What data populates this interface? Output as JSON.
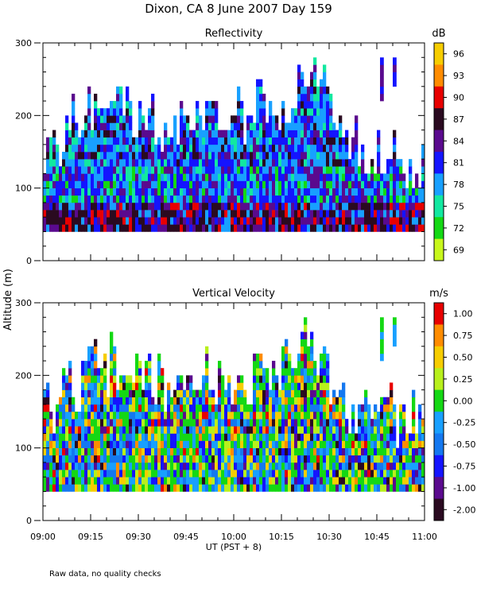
{
  "title": "Dixon, CA  8 June 2007  Day 159",
  "shared_ylabel": "Altitude (m)",
  "shared_xlabel": "UT  (PST + 8)",
  "footnote": "Raw data, no quality checks",
  "chart_data": [
    {
      "type": "heatmap",
      "title": "Reflectivity",
      "colorbar_unit": "dB",
      "x_range": [
        "09:00",
        "11:00"
      ],
      "x_ticks": [
        "09:00",
        "09:15",
        "09:30",
        "09:45",
        "10:00",
        "10:15",
        "10:30",
        "10:45",
        "11:00"
      ],
      "ylim": [
        0,
        300
      ],
      "y_ticks": [
        0,
        100,
        200,
        300
      ],
      "colorbar_ticks": [
        "96",
        "93",
        "90",
        "87",
        "84",
        "81",
        "78",
        "75",
        "72",
        "69"
      ],
      "colorbar_colors": [
        "#f6cd00",
        "#ff8c00",
        "#e80000",
        "#2a0a20",
        "#5a0a8e",
        "#1414ff",
        "#18a0ff",
        "#12e8a0",
        "#14d814",
        "#c8f71c"
      ],
      "data_floor_m": 40,
      "echo_top_profile": [
        {
          "minutes": 0,
          "top_m": 140
        },
        {
          "minutes": 8,
          "top_m": 180
        },
        {
          "minutes": 15,
          "top_m": 200
        },
        {
          "minutes": 25,
          "top_m": 220
        },
        {
          "minutes": 35,
          "top_m": 180
        },
        {
          "minutes": 45,
          "top_m": 200
        },
        {
          "minutes": 55,
          "top_m": 200
        },
        {
          "minutes": 65,
          "top_m": 200
        },
        {
          "minutes": 75,
          "top_m": 220
        },
        {
          "minutes": 85,
          "top_m": 240
        },
        {
          "minutes": 95,
          "top_m": 180
        },
        {
          "minutes": 100,
          "top_m": 140
        },
        {
          "minutes": 110,
          "top_m": 140
        },
        {
          "minutes": 120,
          "top_m": 140
        }
      ],
      "isolated_echoes": [
        {
          "minutes": 106,
          "bottom_m": 220,
          "top_m": 280
        },
        {
          "minutes": 110,
          "bottom_m": 240,
          "top_m": 280
        }
      ]
    },
    {
      "type": "heatmap",
      "title": "Vertical Velocity",
      "colorbar_unit": "m/s",
      "x_range": [
        "09:00",
        "11:00"
      ],
      "x_ticks": [
        "09:00",
        "09:15",
        "09:30",
        "09:45",
        "10:00",
        "10:15",
        "10:30",
        "10:45",
        "11:00"
      ],
      "ylim": [
        0,
        300
      ],
      "y_ticks": [
        0,
        100,
        200,
        300
      ],
      "colorbar_ticks": [
        "1.00",
        "0.75",
        "0.50",
        "0.25",
        "0.00",
        "-0.25",
        "-0.50",
        "-0.75",
        "-1.00",
        "-2.00"
      ],
      "colorbar_colors": [
        "#e80000",
        "#ff8c00",
        "#f6cd00",
        "#b8f01c",
        "#14d814",
        "#18a0ff",
        "#1478f0",
        "#1414ff",
        "#5a0a8e",
        "#2a0a20"
      ],
      "data_floor_m": 40,
      "echo_top_profile": [
        {
          "minutes": 0,
          "top_m": 140
        },
        {
          "minutes": 8,
          "top_m": 180
        },
        {
          "minutes": 15,
          "top_m": 200
        },
        {
          "minutes": 25,
          "top_m": 220
        },
        {
          "minutes": 35,
          "top_m": 180
        },
        {
          "minutes": 45,
          "top_m": 200
        },
        {
          "minutes": 55,
          "top_m": 200
        },
        {
          "minutes": 65,
          "top_m": 200
        },
        {
          "minutes": 75,
          "top_m": 220
        },
        {
          "minutes": 85,
          "top_m": 240
        },
        {
          "minutes": 95,
          "top_m": 160
        },
        {
          "minutes": 100,
          "top_m": 160
        },
        {
          "minutes": 110,
          "top_m": 140
        },
        {
          "minutes": 120,
          "top_m": 140
        }
      ],
      "isolated_echoes": [
        {
          "minutes": 106,
          "bottom_m": 220,
          "top_m": 280
        },
        {
          "minutes": 110,
          "bottom_m": 240,
          "top_m": 280
        }
      ]
    }
  ]
}
